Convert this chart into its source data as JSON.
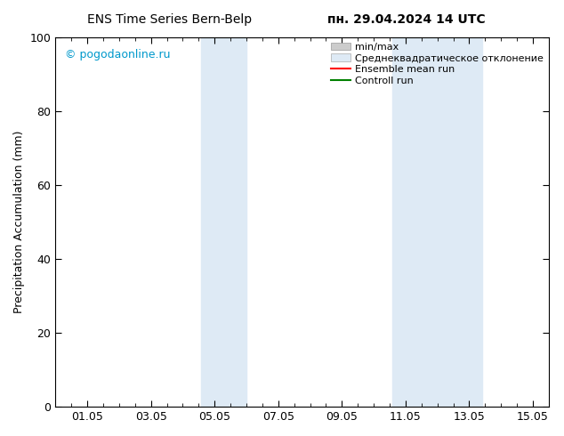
{
  "title_left": "ENS Time Series Bern-Belp",
  "title_right": "пн. 29.04.2024 14 UTC",
  "ylabel": "Precipitation Accumulation (mm)",
  "watermark": "© pogodaonline.ru",
  "ylim": [
    0,
    100
  ],
  "yticks": [
    0,
    20,
    40,
    60,
    80,
    100
  ],
  "x_ticks_labels": [
    "01.05",
    "03.05",
    "05.05",
    "07.05",
    "09.05",
    "11.05",
    "13.05",
    "15.05"
  ],
  "x_ticks_positions": [
    1.0,
    3.0,
    5.0,
    7.0,
    9.0,
    11.0,
    13.0,
    15.0
  ],
  "shade_regions": [
    {
      "x_start": 4.583,
      "x_end": 6.0,
      "color": "#deeaf5",
      "alpha": 1.0
    },
    {
      "x_start": 10.583,
      "x_end": 13.417,
      "color": "#deeaf5",
      "alpha": 1.0
    }
  ],
  "legend_items": [
    {
      "label": "min/max",
      "color": "#bbbbbb",
      "type": "fill"
    },
    {
      "label": "Среднеквадратическое отклонение",
      "color": "#deeaf5",
      "type": "fill"
    },
    {
      "label": "Ensemble mean run",
      "color": "red",
      "type": "line"
    },
    {
      "label": "Controll run",
      "color": "green",
      "type": "line"
    }
  ],
  "bg_color": "white",
  "plot_bg_color": "white",
  "border_color": "black",
  "tick_color": "black",
  "x_min": 0.0,
  "x_max": 15.5,
  "title_fontsize": 10,
  "legend_fontsize": 8,
  "ylabel_fontsize": 9,
  "tick_labelsize": 9,
  "watermark_color": "#0099cc"
}
